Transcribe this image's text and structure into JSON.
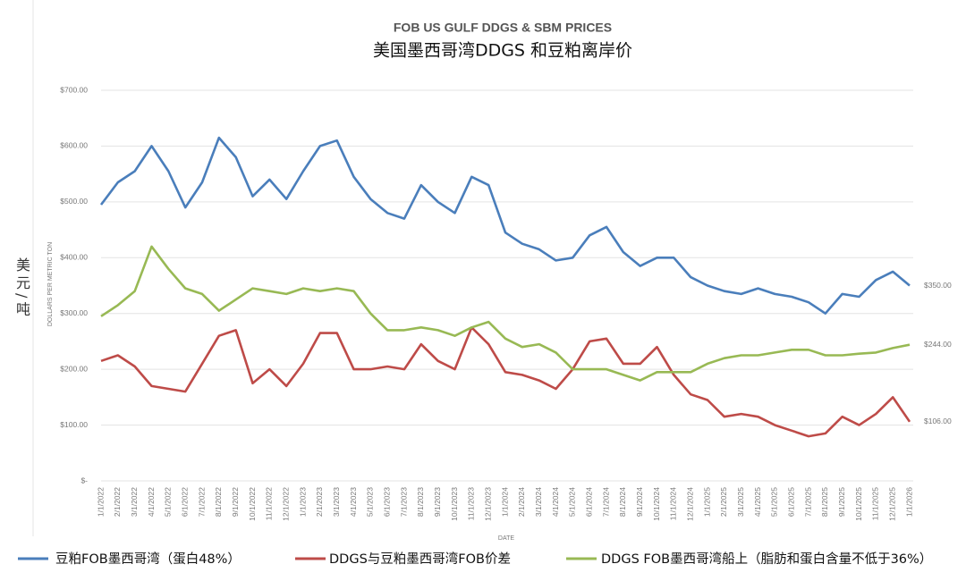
{
  "chart_data": {
    "type": "line",
    "title": "FOB US GULF DDGS & SBM PRICES",
    "subtitle": "美国墨西哥湾DDGS 和豆粕离岸价",
    "y_label": "DOLLARS PER METRIC TON",
    "x_label": "DATE",
    "unit_label": "美元/吨",
    "categories": [
      "1/1/2022",
      "2/1/2022",
      "3/1/2022",
      "4/1/2022",
      "5/1/2022",
      "6/1/2022",
      "7/1/2022",
      "8/1/2022",
      "9/1/2022",
      "10/1/2022",
      "11/1/2022",
      "12/1/2022",
      "1/1/2023",
      "2/1/2023",
      "3/1/2023",
      "4/1/2023",
      "5/1/2023",
      "6/1/2023",
      "7/1/2023",
      "8/1/2023",
      "9/1/2023",
      "10/1/2023",
      "11/1/2023",
      "12/1/2023",
      "1/1/2024",
      "2/1/2024",
      "3/1/2024",
      "4/1/2024",
      "5/1/2024",
      "6/1/2024",
      "7/1/2024",
      "8/1/2024",
      "9/1/2024",
      "10/1/2024",
      "11/1/2024",
      "12/1/2024",
      "1/1/2025",
      "2/1/2025",
      "3/1/2025",
      "4/1/2025",
      "5/1/2025",
      "6/1/2025",
      "7/1/2025",
      "8/1/2025",
      "9/1/2025",
      "10/1/2025",
      "11/1/2025",
      "12/1/2025",
      "1/1/2026"
    ],
    "series": [
      {
        "name": "豆粕FOB墨西哥湾（蛋白48%）",
        "color": "#4a7ebb",
        "values": [
          495,
          535,
          555,
          600,
          555,
          490,
          535,
          615,
          580,
          510,
          540,
          505,
          555,
          600,
          610,
          545,
          505,
          480,
          470,
          530,
          500,
          480,
          545,
          530,
          445,
          425,
          415,
          395,
          400,
          440,
          455,
          410,
          385,
          400,
          400,
          365,
          350,
          340,
          335,
          345,
          335,
          330,
          320,
          300,
          335,
          330,
          360,
          375,
          350
        ],
        "value_labels": [
          null,
          null,
          null,
          null,
          null,
          null,
          null,
          null,
          null,
          null,
          null,
          null,
          null,
          null,
          null,
          null,
          null,
          null,
          null,
          null,
          null,
          null,
          null,
          null,
          null,
          null,
          null,
          null,
          null,
          null,
          null,
          null,
          null,
          null,
          null,
          null,
          null,
          null,
          null,
          null,
          null,
          null,
          null,
          null,
          null,
          null,
          null,
          null,
          "$350.00"
        ]
      },
      {
        "name": "DDGS与豆粕墨西哥湾FOB价差",
        "color": "#be4b48",
        "values": [
          215,
          225,
          205,
          170,
          165,
          160,
          210,
          260,
          270,
          175,
          200,
          170,
          210,
          265,
          265,
          200,
          200,
          205,
          200,
          245,
          215,
          200,
          275,
          245,
          195,
          190,
          180,
          165,
          200,
          250,
          255,
          210,
          210,
          240,
          190,
          155,
          145,
          115,
          120,
          115,
          100,
          90,
          80,
          85,
          115,
          100,
          120,
          150,
          106
        ],
        "value_labels": [
          null,
          null,
          null,
          null,
          null,
          null,
          null,
          null,
          null,
          null,
          null,
          null,
          null,
          null,
          null,
          null,
          null,
          null,
          null,
          null,
          null,
          null,
          null,
          null,
          null,
          null,
          null,
          null,
          null,
          null,
          null,
          null,
          null,
          null,
          null,
          null,
          null,
          null,
          null,
          null,
          null,
          null,
          null,
          null,
          null,
          null,
          null,
          null,
          "$106.00"
        ]
      },
      {
        "name": "DDGS FOB墨西哥湾船上（脂肪和蛋白含量不低于36%）",
        "color": "#98b954",
        "values": [
          295,
          315,
          340,
          420,
          380,
          345,
          335,
          305,
          325,
          345,
          340,
          335,
          345,
          340,
          345,
          340,
          300,
          270,
          270,
          275,
          270,
          260,
          275,
          285,
          255,
          240,
          245,
          230,
          200,
          200,
          200,
          190,
          180,
          195,
          195,
          195,
          210,
          220,
          225,
          225,
          230,
          235,
          235,
          225,
          225,
          228,
          230,
          238,
          244
        ],
        "value_labels": [
          null,
          null,
          null,
          null,
          null,
          null,
          null,
          null,
          null,
          null,
          null,
          null,
          null,
          null,
          null,
          null,
          null,
          null,
          null,
          null,
          null,
          null,
          null,
          null,
          null,
          null,
          null,
          null,
          null,
          null,
          null,
          null,
          null,
          null,
          null,
          null,
          null,
          null,
          null,
          null,
          null,
          null,
          null,
          null,
          null,
          null,
          null,
          null,
          "$244.00"
        ]
      }
    ],
    "ylim": [
      0,
      700
    ],
    "yticks": [
      {
        "value": 0,
        "label": "$-"
      },
      {
        "value": 100,
        "label": "$100.00"
      },
      {
        "value": 200,
        "label": "$200.00"
      },
      {
        "value": 300,
        "label": "$300.00"
      },
      {
        "value": 400,
        "label": "$400.00"
      },
      {
        "value": 500,
        "label": "$500.00"
      },
      {
        "value": 600,
        "label": "$600.00"
      },
      {
        "value": 700,
        "label": "$700.00"
      }
    ],
    "grid": true
  }
}
